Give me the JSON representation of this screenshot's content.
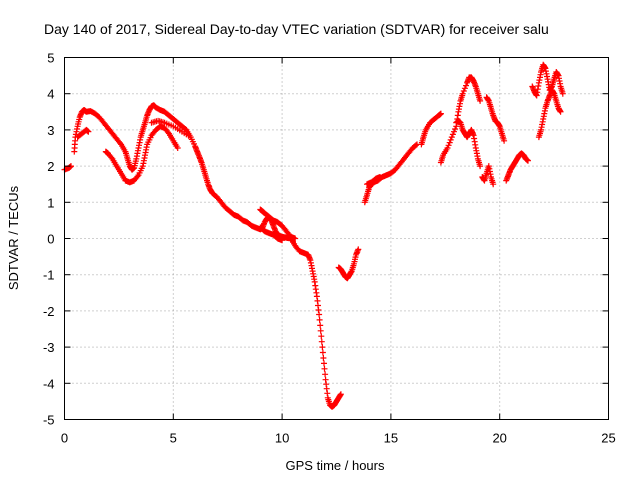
{
  "chart_data": {
    "type": "scatter",
    "title": "Day 140 of 2017, Sidereal Day-to-day VTEC variation (SDTVAR) for receiver salu",
    "xlabel": "GPS time / hours",
    "ylabel": "SDTVAR / TECUs",
    "xlim": [
      0,
      25
    ],
    "ylim": [
      -5,
      5
    ],
    "xticks": [
      "0",
      "5",
      "10",
      "15",
      "20",
      "25"
    ],
    "yticks": [
      "5",
      "4",
      "3",
      "2",
      "1",
      "0",
      "-1",
      "-2",
      "-3",
      "-4",
      "-5"
    ],
    "grid": true,
    "marker": "plus",
    "color": "#ff0000",
    "series": [
      {
        "segments": [
          [
            [
              0.0,
              1.9
            ],
            [
              0.2,
              1.95
            ],
            [
              0.3,
              2.0
            ]
          ],
          [
            [
              0.45,
              2.4
            ],
            [
              0.5,
              2.8
            ],
            [
              0.6,
              3.1
            ],
            [
              0.7,
              3.35
            ],
            [
              0.8,
              3.5
            ],
            [
              0.9,
              3.55
            ],
            [
              1.0,
              3.5
            ],
            [
              1.2,
              3.52
            ],
            [
              1.4,
              3.45
            ],
            [
              1.6,
              3.35
            ],
            [
              1.8,
              3.2
            ],
            [
              2.0,
              3.05
            ],
            [
              2.2,
              2.9
            ],
            [
              2.4,
              2.75
            ],
            [
              2.6,
              2.6
            ],
            [
              2.8,
              2.4
            ],
            [
              2.9,
              2.2
            ],
            [
              3.0,
              2.0
            ],
            [
              3.1,
              1.9
            ],
            [
              3.2,
              1.95
            ],
            [
              3.3,
              2.2
            ],
            [
              3.4,
              2.5
            ],
            [
              3.5,
              2.8
            ],
            [
              3.6,
              3.0
            ],
            [
              3.7,
              3.2
            ],
            [
              3.8,
              3.4
            ],
            [
              3.9,
              3.55
            ],
            [
              4.0,
              3.65
            ],
            [
              4.1,
              3.68
            ],
            [
              4.2,
              3.62
            ],
            [
              4.4,
              3.55
            ],
            [
              4.6,
              3.5
            ],
            [
              4.8,
              3.4
            ],
            [
              5.0,
              3.3
            ],
            [
              5.2,
              3.2
            ],
            [
              5.4,
              3.1
            ],
            [
              5.6,
              3.0
            ],
            [
              5.8,
              2.8
            ],
            [
              6.0,
              2.55
            ],
            [
              6.1,
              2.4
            ],
            [
              6.2,
              2.25
            ],
            [
              6.3,
              2.1
            ],
            [
              6.4,
              1.9
            ],
            [
              6.5,
              1.7
            ],
            [
              6.6,
              1.5
            ],
            [
              6.7,
              1.35
            ],
            [
              6.8,
              1.25
            ],
            [
              7.0,
              1.15
            ],
            [
              7.2,
              1.0
            ],
            [
              7.4,
              0.85
            ],
            [
              7.6,
              0.75
            ],
            [
              7.8,
              0.65
            ],
            [
              8.0,
              0.6
            ],
            [
              8.2,
              0.5
            ],
            [
              8.4,
              0.45
            ],
            [
              8.6,
              0.35
            ],
            [
              8.8,
              0.3
            ],
            [
              9.0,
              0.25
            ],
            [
              9.1,
              0.3
            ],
            [
              9.2,
              0.45
            ],
            [
              9.3,
              0.55
            ],
            [
              9.4,
              0.6
            ],
            [
              9.5,
              0.5
            ],
            [
              9.6,
              0.35
            ],
            [
              9.7,
              0.2
            ],
            [
              9.8,
              0.1
            ],
            [
              10.0,
              0.05
            ],
            [
              10.2,
              0.02
            ],
            [
              10.4,
              0.0
            ],
            [
              10.6,
              -0.2
            ],
            [
              10.8,
              -0.35
            ],
            [
              11.0,
              -0.4
            ],
            [
              11.2,
              -0.45
            ],
            [
              11.3,
              -0.6
            ],
            [
              11.4,
              -0.9
            ],
            [
              11.5,
              -1.2
            ],
            [
              11.6,
              -1.6
            ],
            [
              11.7,
              -2.1
            ],
            [
              11.8,
              -2.7
            ],
            [
              11.9,
              -3.3
            ],
            [
              12.0,
              -3.9
            ],
            [
              12.1,
              -4.4
            ],
            [
              12.2,
              -4.6
            ],
            [
              12.3,
              -4.65
            ],
            [
              12.4,
              -4.6
            ],
            [
              12.5,
              -4.5
            ],
            [
              12.6,
              -4.4
            ],
            [
              12.7,
              -4.3
            ]
          ],
          [
            [
              0.6,
              2.8
            ],
            [
              0.8,
              2.9
            ],
            [
              1.0,
              3.0
            ],
            [
              1.1,
              2.95
            ]
          ],
          [
            [
              1.9,
              2.4
            ],
            [
              2.0,
              2.35
            ],
            [
              2.2,
              2.2
            ],
            [
              2.4,
              2.0
            ],
            [
              2.6,
              1.8
            ],
            [
              2.8,
              1.6
            ],
            [
              3.0,
              1.55
            ],
            [
              3.2,
              1.6
            ],
            [
              3.4,
              1.75
            ],
            [
              3.6,
              2.0
            ],
            [
              3.7,
              2.3
            ],
            [
              3.8,
              2.6
            ],
            [
              4.0,
              2.85
            ],
            [
              4.2,
              3.0
            ],
            [
              4.4,
              3.1
            ],
            [
              4.6,
              3.05
            ],
            [
              4.8,
              2.9
            ],
            [
              5.0,
              2.7
            ],
            [
              5.2,
              2.5
            ]
          ],
          [
            [
              4.0,
              3.2
            ],
            [
              4.3,
              3.25
            ],
            [
              4.6,
              3.2
            ],
            [
              5.0,
              3.1
            ],
            [
              5.4,
              2.95
            ],
            [
              5.8,
              2.8
            ]
          ],
          [
            [
              9.0,
              0.8
            ],
            [
              9.1,
              0.75
            ],
            [
              9.2,
              0.7
            ],
            [
              9.4,
              0.6
            ],
            [
              9.6,
              0.5
            ],
            [
              9.8,
              0.45
            ],
            [
              10.0,
              0.35
            ],
            [
              10.2,
              0.2
            ],
            [
              10.4,
              0.05
            ],
            [
              10.6,
              0.0
            ]
          ],
          [
            [
              9.0,
              0.3
            ],
            [
              9.2,
              0.2
            ],
            [
              9.4,
              0.15
            ],
            [
              9.6,
              0.1
            ],
            [
              9.8,
              0.0
            ],
            [
              10.0,
              -0.05
            ]
          ],
          [
            [
              12.6,
              -0.8
            ],
            [
              12.7,
              -0.85
            ],
            [
              12.8,
              -0.95
            ],
            [
              12.9,
              -1.05
            ],
            [
              13.0,
              -1.1
            ],
            [
              13.1,
              -1.0
            ],
            [
              13.2,
              -0.9
            ],
            [
              13.3,
              -0.7
            ],
            [
              13.4,
              -0.45
            ],
            [
              13.5,
              -0.3
            ]
          ],
          [
            [
              13.8,
              1.0
            ],
            [
              13.9,
              1.2
            ],
            [
              14.0,
              1.4
            ],
            [
              14.2,
              1.55
            ],
            [
              14.4,
              1.6
            ],
            [
              14.6,
              1.7
            ],
            [
              14.8,
              1.75
            ],
            [
              15.0,
              1.8
            ],
            [
              15.2,
              1.9
            ],
            [
              15.4,
              2.05
            ],
            [
              15.6,
              2.2
            ],
            [
              15.8,
              2.35
            ],
            [
              16.0,
              2.5
            ],
            [
              16.2,
              2.6
            ]
          ],
          [
            [
              13.9,
              1.5
            ],
            [
              14.1,
              1.55
            ],
            [
              14.3,
              1.65
            ],
            [
              14.5,
              1.7
            ]
          ],
          [
            [
              16.4,
              2.6
            ],
            [
              16.5,
              2.8
            ],
            [
              16.6,
              3.0
            ],
            [
              16.8,
              3.2
            ],
            [
              17.0,
              3.3
            ],
            [
              17.2,
              3.4
            ],
            [
              17.3,
              3.45
            ]
          ],
          [
            [
              17.3,
              2.1
            ],
            [
              17.4,
              2.3
            ],
            [
              17.6,
              2.5
            ],
            [
              17.8,
              2.8
            ],
            [
              18.0,
              3.1
            ],
            [
              18.1,
              3.5
            ],
            [
              18.2,
              3.8
            ],
            [
              18.3,
              4.0
            ],
            [
              18.5,
              4.3
            ],
            [
              18.6,
              4.45
            ],
            [
              18.7,
              4.45
            ],
            [
              18.8,
              4.35
            ],
            [
              18.9,
              4.2
            ],
            [
              19.0,
              4.0
            ],
            [
              19.1,
              3.8
            ]
          ],
          [
            [
              18.0,
              3.2
            ],
            [
              18.1,
              3.25
            ],
            [
              18.2,
              3.2
            ],
            [
              18.3,
              3.0
            ],
            [
              18.4,
              2.9
            ],
            [
              18.5,
              2.8
            ],
            [
              18.6,
              2.9
            ],
            [
              18.7,
              3.0
            ],
            [
              18.8,
              2.85
            ],
            [
              18.9,
              2.5
            ],
            [
              19.0,
              2.2
            ],
            [
              19.1,
              2.0
            ]
          ],
          [
            [
              19.2,
              1.7
            ],
            [
              19.3,
              1.6
            ],
            [
              19.4,
              1.8
            ],
            [
              19.5,
              2.0
            ],
            [
              19.6,
              1.7
            ],
            [
              19.7,
              1.5
            ]
          ],
          [
            [
              19.4,
              3.9
            ],
            [
              19.5,
              3.8
            ],
            [
              19.6,
              3.6
            ],
            [
              19.7,
              3.4
            ],
            [
              19.8,
              3.25
            ],
            [
              19.9,
              3.2
            ],
            [
              20.0,
              3.1
            ],
            [
              20.1,
              2.9
            ],
            [
              20.2,
              2.7
            ]
          ],
          [
            [
              20.3,
              1.6
            ],
            [
              20.4,
              1.75
            ],
            [
              20.5,
              1.9
            ],
            [
              20.6,
              2.0
            ],
            [
              20.7,
              2.1
            ],
            [
              20.8,
              2.2
            ],
            [
              20.9,
              2.3
            ],
            [
              21.0,
              2.35
            ],
            [
              21.1,
              2.3
            ],
            [
              21.2,
              2.2
            ],
            [
              21.3,
              2.15
            ]
          ],
          [
            [
              21.5,
              4.2
            ],
            [
              21.6,
              4.05
            ],
            [
              21.7,
              3.95
            ],
            [
              21.8,
              4.3
            ],
            [
              21.9,
              4.6
            ],
            [
              22.0,
              4.8
            ],
            [
              22.1,
              4.7
            ],
            [
              22.2,
              4.4
            ],
            [
              22.3,
              4.1
            ],
            [
              22.4,
              4.2
            ],
            [
              22.5,
              4.4
            ],
            [
              22.6,
              4.6
            ],
            [
              22.7,
              4.5
            ],
            [
              22.8,
              4.2
            ],
            [
              22.9,
              4.0
            ]
          ],
          [
            [
              21.8,
              2.8
            ],
            [
              21.9,
              3.0
            ],
            [
              22.0,
              3.3
            ],
            [
              22.1,
              3.6
            ],
            [
              22.2,
              3.8
            ],
            [
              22.3,
              3.95
            ],
            [
              22.4,
              4.1
            ],
            [
              22.5,
              4.0
            ],
            [
              22.6,
              3.8
            ],
            [
              22.7,
              3.6
            ],
            [
              22.8,
              3.5
            ]
          ]
        ]
      }
    ]
  }
}
